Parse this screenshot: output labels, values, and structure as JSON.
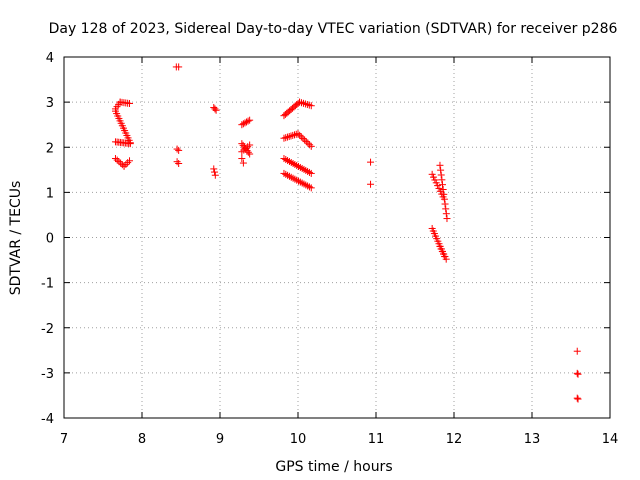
{
  "chart_data": {
    "type": "scatter",
    "title": "Day 128 of 2023, Sidereal Day-to-day VTEC variation (SDTVAR) for receiver p286",
    "xlabel": "GPS time / hours",
    "ylabel": "SDTVAR / TECUs",
    "xlim": [
      7,
      14
    ],
    "ylim": [
      -4,
      4
    ],
    "xticks": [
      "7",
      "8",
      "9",
      "10",
      "11",
      "12",
      "13",
      "14"
    ],
    "yticks": [
      "-4",
      "-3",
      "-2",
      "-1",
      "0",
      "1",
      "2",
      "3",
      "4"
    ],
    "grid": true,
    "marker": "+",
    "color": "#ff0000",
    "series": [
      {
        "name": "SDTVAR",
        "segments": [
          {
            "x0": 7.66,
            "x1": 7.72,
            "y0": 2.85,
            "y1": 3.0,
            "n": 4
          },
          {
            "x0": 7.72,
            "x1": 7.84,
            "y0": 3.0,
            "y1": 2.97,
            "n": 6
          },
          {
            "x0": 7.66,
            "x1": 7.85,
            "y0": 2.8,
            "y1": 2.1,
            "n": 14
          },
          {
            "x0": 7.66,
            "x1": 7.85,
            "y0": 2.12,
            "y1": 2.08,
            "n": 10
          },
          {
            "x0": 7.66,
            "x1": 7.77,
            "y0": 1.75,
            "y1": 1.58,
            "n": 6
          },
          {
            "x0": 7.77,
            "x1": 7.84,
            "y0": 1.58,
            "y1": 1.7,
            "n": 4
          },
          {
            "x0": 8.44,
            "x1": 8.47,
            "y0": 3.78,
            "y1": 3.78,
            "n": 2
          },
          {
            "x0": 8.45,
            "x1": 8.47,
            "y0": 1.96,
            "y1": 1.93,
            "n": 2
          },
          {
            "x0": 8.45,
            "x1": 8.47,
            "y0": 1.68,
            "y1": 1.64,
            "n": 2
          },
          {
            "x0": 8.92,
            "x1": 8.95,
            "y0": 2.88,
            "y1": 2.82,
            "n": 3
          },
          {
            "x0": 8.92,
            "x1": 8.94,
            "y0": 1.52,
            "y1": 1.38,
            "n": 3
          },
          {
            "x0": 9.28,
            "x1": 9.38,
            "y0": 2.5,
            "y1": 2.6,
            "n": 6
          },
          {
            "x0": 9.28,
            "x1": 9.38,
            "y0": 2.08,
            "y1": 1.85,
            "n": 7
          },
          {
            "x0": 9.28,
            "x1": 9.38,
            "y0": 1.9,
            "y1": 2.05,
            "n": 5
          },
          {
            "x0": 9.28,
            "x1": 9.3,
            "y0": 1.75,
            "y1": 1.65,
            "n": 2
          },
          {
            "x0": 9.82,
            "x1": 10.02,
            "y0": 2.7,
            "y1": 3.0,
            "n": 12
          },
          {
            "x0": 10.02,
            "x1": 10.17,
            "y0": 3.0,
            "y1": 2.92,
            "n": 7
          },
          {
            "x0": 9.82,
            "x1": 10.0,
            "y0": 2.2,
            "y1": 2.3,
            "n": 9
          },
          {
            "x0": 10.0,
            "x1": 10.17,
            "y0": 2.3,
            "y1": 2.02,
            "n": 9
          },
          {
            "x0": 9.82,
            "x1": 10.17,
            "y0": 1.75,
            "y1": 1.42,
            "n": 16
          },
          {
            "x0": 9.82,
            "x1": 10.17,
            "y0": 1.42,
            "y1": 1.1,
            "n": 16
          },
          {
            "x0": 10.93,
            "x1": 10.93,
            "y0": 1.67,
            "y1": 1.67,
            "n": 1
          },
          {
            "x0": 10.93,
            "x1": 10.93,
            "y0": 1.18,
            "y1": 1.18,
            "n": 1
          },
          {
            "x0": 11.72,
            "x1": 11.86,
            "y0": 1.4,
            "y1": 0.9,
            "n": 9
          },
          {
            "x0": 11.82,
            "x1": 11.91,
            "y0": 1.6,
            "y1": 0.42,
            "n": 12
          },
          {
            "x0": 11.72,
            "x1": 11.88,
            "y0": 0.2,
            "y1": -0.42,
            "n": 12
          },
          {
            "x0": 11.82,
            "x1": 11.9,
            "y0": -0.2,
            "y1": -0.48,
            "n": 6
          },
          {
            "x0": 13.58,
            "x1": 13.58,
            "y0": -2.52,
            "y1": -2.52,
            "n": 1
          },
          {
            "x0": 13.58,
            "x1": 13.59,
            "y0": -3.01,
            "y1": -3.03,
            "n": 2
          },
          {
            "x0": 13.58,
            "x1": 13.59,
            "y0": -3.56,
            "y1": -3.58,
            "n": 2
          }
        ]
      }
    ]
  }
}
